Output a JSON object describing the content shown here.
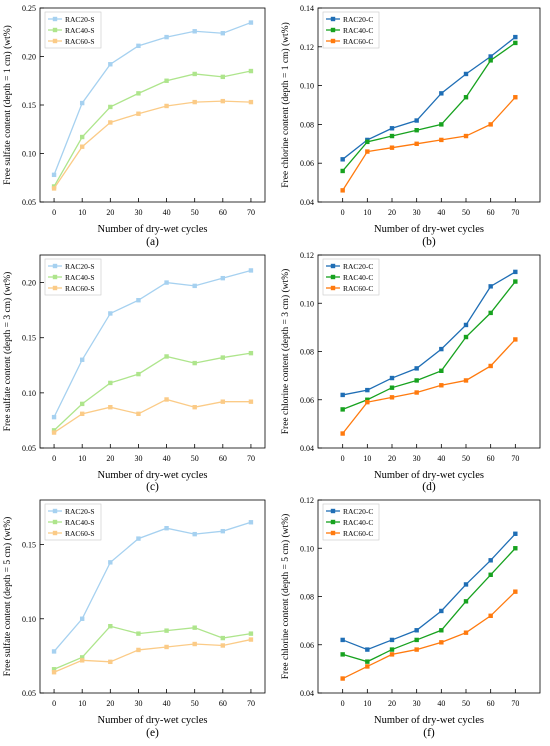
{
  "chart_data": [
    {
      "type": "line",
      "panel_label": "(a)",
      "xlabel": "Number of dry-wet cycles",
      "ylabel": "Free sulfate content (depth = 1 cm) (wt%)",
      "x": [
        0,
        10,
        20,
        30,
        40,
        50,
        60,
        70
      ],
      "xticks": [
        "0",
        "10",
        "20",
        "30",
        "40",
        "50",
        "60",
        "70"
      ],
      "xlim": [
        -5,
        75
      ],
      "ylim": [
        0.05,
        0.25
      ],
      "yticks": [
        "0.05",
        "0.10",
        "0.15",
        "0.20",
        "0.25"
      ],
      "legend_position": "top-left",
      "series": [
        {
          "name": "RAC20-S",
          "color": "#a6d1f0",
          "values": [
            0.078,
            0.152,
            0.192,
            0.211,
            0.22,
            0.226,
            0.224,
            0.235
          ]
        },
        {
          "name": "RAC40-S",
          "color": "#aee58c",
          "values": [
            0.066,
            0.117,
            0.148,
            0.162,
            0.175,
            0.182,
            0.179,
            0.185
          ]
        },
        {
          "name": "RAC60-S",
          "color": "#fbcb87",
          "values": [
            0.064,
            0.107,
            0.132,
            0.141,
            0.149,
            0.153,
            0.154,
            0.153
          ]
        }
      ]
    },
    {
      "type": "line",
      "panel_label": "(b)",
      "xlabel": "Number of dry-wet cycles",
      "ylabel": "Free chlorine content (depth = 1 cm) (wt%)",
      "x": [
        0,
        10,
        20,
        30,
        40,
        50,
        60,
        70
      ],
      "xticks": [
        "0",
        "10",
        "20",
        "30",
        "40",
        "50",
        "60",
        "70"
      ],
      "xlim": [
        -10,
        80
      ],
      "ylim": [
        0.04,
        0.14
      ],
      "yticks": [
        "0.04",
        "0.06",
        "0.08",
        "0.10",
        "0.12",
        "0.14"
      ],
      "legend_position": "top-left",
      "series": [
        {
          "name": "RAC20-C",
          "color": "#1f6eb5",
          "values": [
            0.062,
            0.072,
            0.078,
            0.082,
            0.096,
            0.106,
            0.115,
            0.125
          ]
        },
        {
          "name": "RAC40-C",
          "color": "#17a21f",
          "values": [
            0.056,
            0.071,
            0.074,
            0.077,
            0.08,
            0.094,
            0.113,
            0.122
          ]
        },
        {
          "name": "RAC60-C",
          "color": "#ff7a0e",
          "values": [
            0.046,
            0.066,
            0.068,
            0.07,
            0.072,
            0.074,
            0.08,
            0.094
          ]
        }
      ]
    },
    {
      "type": "line",
      "panel_label": "(c)",
      "xlabel": "Number of dry-wet cycles",
      "ylabel": "Free sulfate content (depth = 3 cm) (wt%)",
      "x": [
        0,
        10,
        20,
        30,
        40,
        50,
        60,
        70
      ],
      "xticks": [
        "0",
        "10",
        "20",
        "30",
        "40",
        "50",
        "60",
        "70"
      ],
      "xlim": [
        -5,
        75
      ],
      "ylim": [
        0.05,
        0.225
      ],
      "yticks": [
        "0.05",
        "0.10",
        "0.15",
        "0.20"
      ],
      "legend_position": "top-left",
      "series": [
        {
          "name": "RAC20-S",
          "color": "#a6d1f0",
          "values": [
            0.078,
            0.13,
            0.172,
            0.184,
            0.2,
            0.197,
            0.204,
            0.211
          ]
        },
        {
          "name": "RAC40-S",
          "color": "#aee58c",
          "values": [
            0.066,
            0.09,
            0.109,
            0.117,
            0.133,
            0.127,
            0.132,
            0.136
          ]
        },
        {
          "name": "RAC60-S",
          "color": "#fbcb87",
          "values": [
            0.064,
            0.081,
            0.087,
            0.081,
            0.094,
            0.087,
            0.092,
            0.092
          ]
        }
      ]
    },
    {
      "type": "line",
      "panel_label": "(d)",
      "xlabel": "Number of dry-wet cycles",
      "ylabel": "Free chlorine content (depth = 3 cm) (wt%)",
      "x": [
        0,
        10,
        20,
        30,
        40,
        50,
        60,
        70
      ],
      "xticks": [
        "0",
        "10",
        "20",
        "30",
        "40",
        "50",
        "60",
        "70"
      ],
      "xlim": [
        -10,
        80
      ],
      "ylim": [
        0.04,
        0.12
      ],
      "yticks": [
        "0.04",
        "0.06",
        "0.08",
        "0.10",
        "0.12"
      ],
      "legend_position": "top-left",
      "series": [
        {
          "name": "RAC20-C",
          "color": "#1f6eb5",
          "values": [
            0.062,
            0.064,
            0.069,
            0.073,
            0.081,
            0.091,
            0.107,
            0.113
          ]
        },
        {
          "name": "RAC40-C",
          "color": "#17a21f",
          "values": [
            0.056,
            0.06,
            0.065,
            0.068,
            0.072,
            0.086,
            0.096,
            0.109
          ]
        },
        {
          "name": "RAC60-C",
          "color": "#ff7a0e",
          "values": [
            0.046,
            0.059,
            0.061,
            0.063,
            0.066,
            0.068,
            0.074,
            0.085
          ]
        }
      ]
    },
    {
      "type": "line",
      "panel_label": "(e)",
      "xlabel": "Number of dry-wet cycles",
      "ylabel": "Free sulfate content (depth = 5 cm) (wt%)",
      "x": [
        0,
        10,
        20,
        30,
        40,
        50,
        60,
        70
      ],
      "xticks": [
        "0",
        "10",
        "20",
        "30",
        "40",
        "50",
        "60",
        "70"
      ],
      "xlim": [
        -5,
        75
      ],
      "ylim": [
        0.05,
        0.18
      ],
      "yticks": [
        "0.05",
        "0.10",
        "0.15"
      ],
      "legend_position": "top-left",
      "series": [
        {
          "name": "RAC20-S",
          "color": "#a6d1f0",
          "values": [
            0.078,
            0.1,
            0.138,
            0.154,
            0.161,
            0.157,
            0.159,
            0.165
          ]
        },
        {
          "name": "RAC40-S",
          "color": "#aee58c",
          "values": [
            0.066,
            0.074,
            0.095,
            0.09,
            0.092,
            0.094,
            0.087,
            0.09
          ]
        },
        {
          "name": "RAC60-S",
          "color": "#fbcb87",
          "values": [
            0.064,
            0.072,
            0.071,
            0.079,
            0.081,
            0.083,
            0.082,
            0.086
          ]
        }
      ]
    },
    {
      "type": "line",
      "panel_label": "(f)",
      "xlabel": "Number of dry-wet cycles",
      "ylabel": "Free chlorine content (depth = 5 cm) (wt%)",
      "x": [
        0,
        10,
        20,
        30,
        40,
        50,
        60,
        70
      ],
      "xticks": [
        "0",
        "10",
        "20",
        "30",
        "40",
        "50",
        "60",
        "70"
      ],
      "xlim": [
        -10,
        80
      ],
      "ylim": [
        0.04,
        0.12
      ],
      "yticks": [
        "0.04",
        "0.06",
        "0.08",
        "0.10",
        "0.12"
      ],
      "legend_position": "top-left",
      "series": [
        {
          "name": "RAC20-C",
          "color": "#1f6eb5",
          "values": [
            0.062,
            0.058,
            0.062,
            0.066,
            0.074,
            0.085,
            0.095,
            0.106
          ]
        },
        {
          "name": "RAC40-C",
          "color": "#17a21f",
          "values": [
            0.056,
            0.053,
            0.058,
            0.062,
            0.066,
            0.078,
            0.089,
            0.1
          ]
        },
        {
          "name": "RAC60-C",
          "color": "#ff7a0e",
          "values": [
            0.046,
            0.051,
            0.056,
            0.058,
            0.061,
            0.065,
            0.072,
            0.082
          ]
        }
      ]
    }
  ]
}
